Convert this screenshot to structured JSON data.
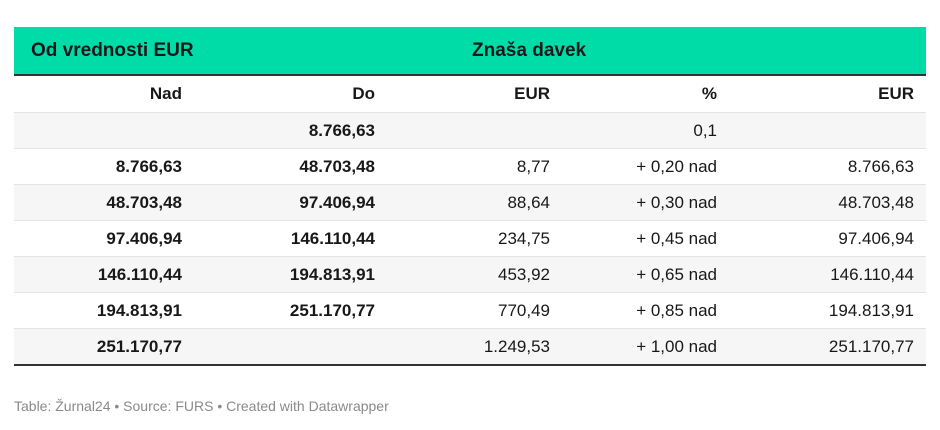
{
  "table": {
    "group_headers": {
      "left": "Od vrednosti EUR",
      "right": "Znaša davek"
    },
    "columns": [
      "Nad",
      "Do",
      "EUR",
      "%",
      "EUR"
    ],
    "rows": [
      [
        "",
        "8.766,63",
        "",
        "0,1",
        ""
      ],
      [
        "8.766,63",
        "48.703,48",
        "8,77",
        "+ 0,20 nad",
        "8.766,63"
      ],
      [
        "48.703,48",
        "97.406,94",
        "88,64",
        "+ 0,30 nad",
        "48.703,48"
      ],
      [
        "97.406,94",
        "146.110,44",
        "234,75",
        "+ 0,45 nad",
        "97.406,94"
      ],
      [
        "146.110,44",
        "194.813,91",
        "453,92",
        "+ 0,65 nad",
        "146.110,44"
      ],
      [
        "194.813,91",
        "251.170,77",
        "770,49",
        "+ 0,85 nad",
        "194.813,91"
      ],
      [
        "251.170,77",
        "",
        "1.249,53",
        "+ 1,00 nad",
        "251.170,77"
      ]
    ]
  },
  "footer": {
    "text": "Table: Žurnal24 • Source: FURS • Created with Datawrapper"
  },
  "colors": {
    "header_accent": "#00dca8",
    "rule": "#333333",
    "stripe": "#f6f6f6",
    "footer_text": "#8a8a8a"
  }
}
